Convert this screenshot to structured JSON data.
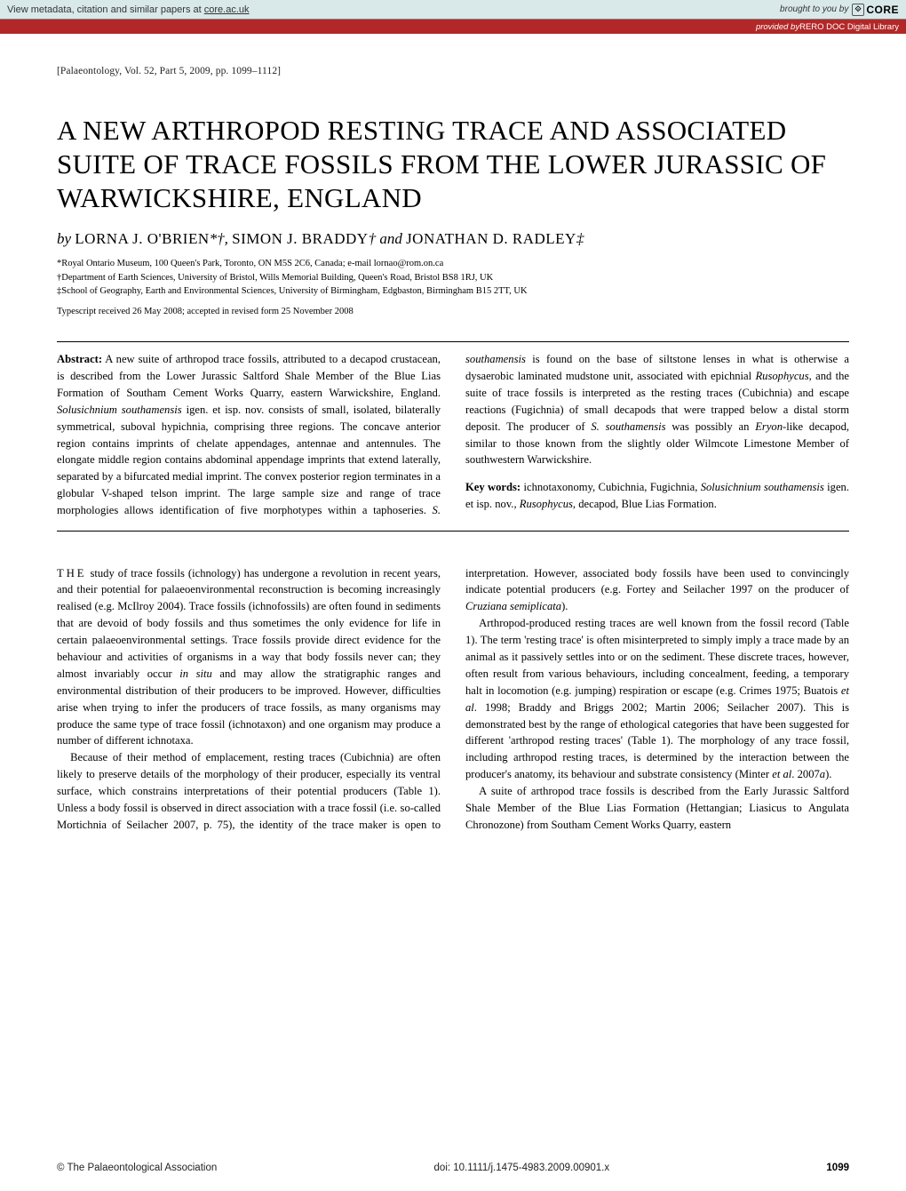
{
  "banner": {
    "left_prefix": "View metadata, citation and similar papers at ",
    "left_link": "core.ac.uk",
    "brought": "brought to you by",
    "core": "CORE"
  },
  "repo_bar": {
    "prefix": "provided by ",
    "name": "RERO DOC Digital Library"
  },
  "journal_ref": "[Palaeontology, Vol. 52, Part 5, 2009, pp. 1099–1112]",
  "title": "A NEW ARTHROPOD RESTING TRACE AND ASSOCIATED SUITE OF TRACE FOSSILS FROM THE LOWER JURASSIC OF WARWICKSHIRE, ENGLAND",
  "authors": {
    "by": "by ",
    "a1": "LORNA J. O'BRIEN",
    "a1_sym": "*†, ",
    "a2": "SIMON J. BRADDY",
    "a2_sym": "† ",
    "and": "and ",
    "a3": "JONATHAN D. RADLEY",
    "a3_sym": "‡"
  },
  "affiliations": {
    "l1": "*Royal Ontario Museum, 100 Queen's Park, Toronto, ON M5S 2C6, Canada; e-mail lornao@rom.on.ca",
    "l2": "†Department of Earth Sciences, University of Bristol, Wills Memorial Building, Queen's Road, Bristol BS8 1RJ, UK",
    "l3": "‡School of Geography, Earth and Environmental Sciences, University of Birmingham, Edgbaston, Birmingham B15 2TT, UK"
  },
  "received": "Typescript received 26 May 2008; accepted in revised form 25 November 2008",
  "abstract": {
    "label": "Abstract:",
    "text_a": " A new suite of arthropod trace fossils, attributed to a decapod crustacean, is described from the Lower Jurassic Saltford Shale Member of the Blue Lias Formation of Southam Cement Works Quarry, eastern Warwickshire, England. ",
    "ital1": "Solusichnium southamensis",
    "text_b": " igen. et isp. nov. consists of small, isolated, bilaterally symmetrical, suboval hypichnia, comprising three regions. The concave anterior region contains imprints of chelate appendages, antennae and antennules. The elongate middle region contains abdominal appendage imprints that extend laterally, separated by a bifurcated medial imprint. The convex posterior region terminates in a globular V-shaped telson imprint. The large sample size and range of trace morphologies allows identification of five morphotypes within a taphoseries. ",
    "ital2": "S. southamensis",
    "text_c": " is found on the base of siltstone lenses in what is otherwise a dysaerobic laminated mudstone unit, associated with epichnial ",
    "ital3": "Rusophycus",
    "text_d": ", and the suite of trace fossils is interpreted as the resting traces (Cubichnia) and escape reactions (Fugichnia) of small decapods that were trapped below a distal storm deposit. The producer of ",
    "ital4": "S. southamensis",
    "text_e": " was possibly an ",
    "ital5": "Eryon",
    "text_f": "-like decapod, similar to those known from the slightly older Wilmcote Limestone Member of southwestern Warwickshire."
  },
  "keywords": {
    "label": "Key words:",
    "text_a": " ichnotaxonomy, Cubichnia, Fugichnia, ",
    "ital1": "Solusichnium southamensis",
    "text_b": " igen. et isp. nov., ",
    "ital2": "Rusophycus",
    "text_c": ", decapod, Blue Lias Formation."
  },
  "body": {
    "p1_dropcap": "THE",
    "p1": " study of trace fossils (ichnology) has undergone a revolution in recent years, and their potential for palaeoenvironmental reconstruction is becoming increasingly realised (e.g. McIlroy 2004). Trace fossils (ichnofossils) are often found in sediments that are devoid of body fossils and thus sometimes the only evidence for life in certain palaeoenvironmental settings. Trace fossils provide direct evidence for the behaviour and activities of organisms in a way that body fossils never can; they almost invariably occur ",
    "p1_ital": "in situ",
    "p1b": " and may allow the stratigraphic ranges and environmental distribution of their producers to be improved. However, difficulties arise when trying to infer the producers of trace fossils, as many organisms may produce the same type of trace fossil (ichnotaxon) and one organism may produce a number of different ichnotaxa.",
    "p2": "Because of their method of emplacement, resting traces (Cubichnia) are often likely to preserve details of the morphology of their producer, especially its ventral surface, which constrains interpretations of their potential producers (Table 1). Unless a body fossil is observed in direct association with a trace fossil (i.e. so-called Mortichnia of Seilacher 2007, p. 75), the identity of the trace maker is open to interpretation. However, associated body fossils have been used to convincingly indicate potential producers (e.g. Fortey and Seilacher 1997 on the producer of ",
    "p2_ital": "Cruziana semiplicata",
    "p2b": ").",
    "p3": "Arthropod-produced resting traces are well known from the fossil record (Table 1). The term 'resting trace' is often misinterpreted to simply imply a trace made by an animal as it passively settles into or on the sediment. These discrete traces, however, often result from various behaviours, including concealment, feeding, a temporary halt in locomotion (e.g. jumping) respiration or escape (e.g. Crimes 1975; Buatois ",
    "p3_ital1": "et al",
    "p3b": ". 1998; Braddy and Briggs 2002; Martin 2006; Seilacher 2007). This is demonstrated best by the range of ethological categories that have been suggested for different 'arthropod resting traces' (Table 1). The morphology of any trace fossil, including arthropod resting traces, is determined by the interaction between the producer's anatomy, its behaviour and substrate consistency (Minter ",
    "p3_ital2": "et al",
    "p3c": ". 2007",
    "p3_ital3": "a",
    "p3d": ").",
    "p4": "A suite of arthropod trace fossils is described from the Early Jurassic Saltford Shale Member of the Blue Lias Formation (Hettangian; Liasicus to Angulata Chronozone) from Southam Cement Works Quarry, eastern"
  },
  "footer": {
    "copyright": "© The Palaeontological Association",
    "doi": "doi: 10.1111/j.1475-4983.2009.00901.x",
    "pagenum": "1099"
  },
  "colors": {
    "banner_bg": "#d9e9e9",
    "repo_bg": "#b22828",
    "text": "#000000"
  }
}
